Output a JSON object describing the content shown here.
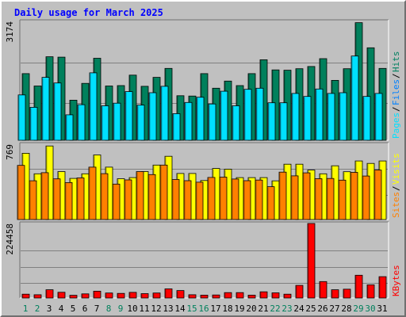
{
  "chart_data": {
    "type": "bar",
    "title": "Daily usage for March 2025",
    "categories": [
      "1",
      "2",
      "3",
      "4",
      "5",
      "6",
      "7",
      "8",
      "9",
      "10",
      "11",
      "12",
      "13",
      "14",
      "15",
      "16",
      "17",
      "18",
      "19",
      "20",
      "21",
      "22",
      "23",
      "24",
      "25",
      "26",
      "27",
      "28",
      "29",
      "30",
      "31"
    ],
    "weekend_days": [
      "1",
      "2",
      "8",
      "9",
      "15",
      "16",
      "22",
      "23",
      "29",
      "30"
    ],
    "panels": [
      {
        "id": "hits",
        "ytick": "3174",
        "ymax": 3174,
        "legend": [
          {
            "label": "Pages",
            "color": "#00e0ff"
          },
          {
            "label": "Files",
            "color": "#0080ff"
          },
          {
            "label": "Hits",
            "color": "#008060"
          }
        ],
        "series": [
          {
            "name": "Hits",
            "color": "#00805c",
            "values": [
              1780,
              1450,
              2230,
              2220,
              1070,
              1520,
              2190,
              1450,
              1460,
              1740,
              1440,
              1680,
              1920,
              1190,
              1180,
              1780,
              1390,
              1580,
              1460,
              1780,
              2150,
              1880,
              1870,
              1910,
              1970,
              2180,
              1600,
              1910,
              3140,
              2470,
              1920
            ]
          },
          {
            "name": "Files",
            "color": "#0050a0",
            "values": [
              0,
              0,
              0,
              0,
              0,
              0,
              0,
              0,
              0,
              0,
              0,
              0,
              0,
              0,
              0,
              0,
              0,
              0,
              0,
              0,
              0,
              0,
              0,
              0,
              0,
              0,
              0,
              0,
              0,
              0,
              0
            ]
          },
          {
            "name": "Pages",
            "color": "#00e0ff",
            "values": [
              1210,
              880,
              1680,
              1530,
              680,
              950,
              1800,
              920,
              990,
              1300,
              940,
              1270,
              1440,
              710,
              1010,
              1150,
              970,
              1310,
              920,
              1360,
              1390,
              1000,
              1000,
              1250,
              1170,
              1370,
              1250,
              1270,
              2250,
              1170,
              1250
            ]
          }
        ]
      },
      {
        "id": "visits",
        "ytick": "769",
        "ymax": 769,
        "legend": [
          {
            "label": "Sites",
            "color": "#ff8000"
          },
          {
            "label": "Visits",
            "color": "#ffff00"
          }
        ],
        "series": [
          {
            "name": "Visits",
            "color": "#ffff00",
            "values": [
              677,
              467,
              751,
              490,
              420,
              467,
              660,
              535,
              417,
              428,
              490,
              556,
              646,
              470,
              470,
              398,
              521,
              514,
              428,
              428,
              428,
              395,
              565,
              565,
              505,
              467,
              549,
              488,
              598,
              573,
              598
            ]
          },
          {
            "name": "Sites",
            "color": "#ff8000",
            "values": [
              553,
              396,
              478,
              415,
              377,
              425,
              535,
              469,
              362,
              405,
              490,
              459,
              556,
              409,
              397,
              381,
              430,
              433,
              414,
              397,
              403,
              335,
              484,
              446,
              477,
              417,
              419,
              402,
              482,
              444,
              505
            ]
          }
        ]
      },
      {
        "id": "kbytes",
        "ytick": "224458",
        "ymax": 224458,
        "legend": [
          {
            "label": "KBytes",
            "color": "#ff0000"
          }
        ],
        "series": [
          {
            "name": "KBytes",
            "color": "#ff0000",
            "values": [
              11500,
              9800,
              24800,
              17200,
              8000,
              12500,
              20500,
              15000,
              13900,
              16900,
              13100,
              15000,
              27500,
              22500,
              9800,
              8500,
              9000,
              16200,
              16200,
              8500,
              18700,
              15600,
              11500,
              38000,
              224458,
              49500,
              24800,
              26600,
              68500,
              39600,
              64300
            ]
          }
        ]
      }
    ]
  }
}
